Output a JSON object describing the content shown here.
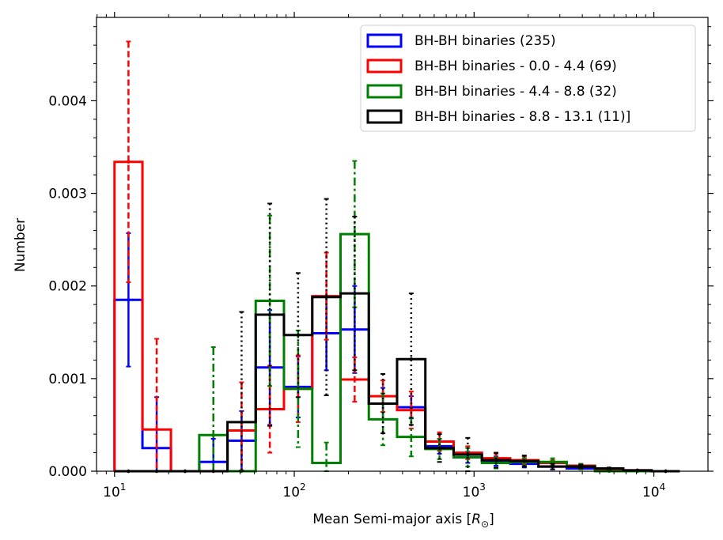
{
  "chart_data": {
    "type": "bar",
    "xlabel_main": "Mean Semi-major axis [",
    "xlabel_sym": "R",
    "xlabel_sub": "⊙",
    "xlabel_end": "]",
    "ylabel": "Number",
    "x_scale": "log",
    "xlim": [
      7.94,
      20000
    ],
    "ylim": [
      0,
      0.0049
    ],
    "x_ticks": [
      {
        "value": 10,
        "base": "10",
        "exp": "1"
      },
      {
        "value": 100,
        "base": "10",
        "exp": "2"
      },
      {
        "value": 1000,
        "base": "10",
        "exp": "3"
      },
      {
        "value": 10000,
        "base": "10",
        "exp": "4"
      }
    ],
    "y_ticks": [
      {
        "value": 0,
        "label": "0.000"
      },
      {
        "value": 0.001,
        "label": "0.001"
      },
      {
        "value": 0.002,
        "label": "0.002"
      },
      {
        "value": 0.003,
        "label": "0.003"
      },
      {
        "value": 0.004,
        "label": "0.004"
      }
    ],
    "bin_edges": [
      10,
      14.3,
      20.6,
      29.6,
      42.5,
      61.0,
      87.6,
      125.9,
      180.8,
      259.7,
      373.0,
      535.8,
      769.6,
      1105.5,
      1587.8,
      2280.7,
      3276,
      4705,
      6758,
      9708,
      13944
    ],
    "legend_position": "upper right",
    "series": [
      {
        "name": "BH-BH binaries (235)",
        "color": "#0000ff",
        "dash": "solid",
        "values": [
          0.00185,
          0.00025,
          0,
          0.0001,
          0.00033,
          0.00112,
          0.00091,
          0.00149,
          0.00153,
          0.00073,
          0.00069,
          0.00027,
          0.00015,
          0.00011,
          8e-05,
          5e-05,
          3e-05,
          1e-05,
          0,
          0
        ],
        "err": [
          0.00072,
          0.00055,
          0,
          0.00025,
          0.00032,
          0.00062,
          0.00033,
          0.0004,
          0.00047,
          0.00017,
          0.00012,
          8e-05,
          6e-05,
          5e-05,
          4e-05,
          3e-05,
          0,
          0,
          0,
          0
        ]
      },
      {
        "name": "BH-BH binaries - 0.0 - 4.4 (69)",
        "color": "#ff0000",
        "dash": "dashed",
        "values": [
          0.00334,
          0.00045,
          0,
          0,
          0.00044,
          0.00067,
          0.00089,
          0.00189,
          0.00099,
          0.00081,
          0.00066,
          0.00032,
          0.0002,
          0.00014,
          0.00012,
          9e-05,
          6e-05,
          2e-05,
          1e-05,
          0
        ],
        "err": [
          0.0013,
          0.00098,
          0,
          0,
          0.00052,
          0.00047,
          0.00036,
          0.00047,
          0.00024,
          0.00017,
          0.0002,
          0.0001,
          7e-05,
          5e-05,
          4e-05,
          3e-05,
          2e-05,
          0,
          0,
          0
        ]
      },
      {
        "name": "BH-BH binaries - 4.4 - 8.8 (32)",
        "color": "#008000",
        "dash": "dashdot",
        "values": [
          0,
          0,
          0,
          0.00039,
          0.0,
          0.00184,
          0.00089,
          9e-05,
          0.00256,
          0.00056,
          0.00037,
          0.00024,
          0.00015,
          9e-05,
          0.0001,
          0.0001,
          5e-05,
          0,
          0,
          0
        ],
        "err": [
          0,
          0,
          0,
          0.00095,
          0,
          0.00092,
          0.00063,
          0.00022,
          0.00079,
          0.00028,
          0.00021,
          0.00011,
          0.0001,
          6e-05,
          4e-05,
          4e-05,
          3e-05,
          0,
          0,
          0
        ]
      },
      {
        "name": "BH-BH binaries - 8.8 - 13.1 (11)]",
        "color": "#000000",
        "dash": "dotted",
        "values": [
          0,
          0,
          0,
          0,
          0.00053,
          0.00169,
          0.00147,
          0.00188,
          0.00192,
          0.00073,
          0.00121,
          0.00025,
          0.00018,
          0.00012,
          0.00011,
          5e-05,
          5e-05,
          3e-05,
          1e-05,
          0
        ],
        "err": [
          0,
          0,
          0,
          0,
          0.00119,
          0.0012,
          0.00067,
          0.00106,
          0.00083,
          0.00032,
          0.00071,
          0.00015,
          0.00018,
          8e-05,
          6e-05,
          3e-05,
          2e-05,
          1e-05,
          0,
          0
        ]
      }
    ]
  }
}
